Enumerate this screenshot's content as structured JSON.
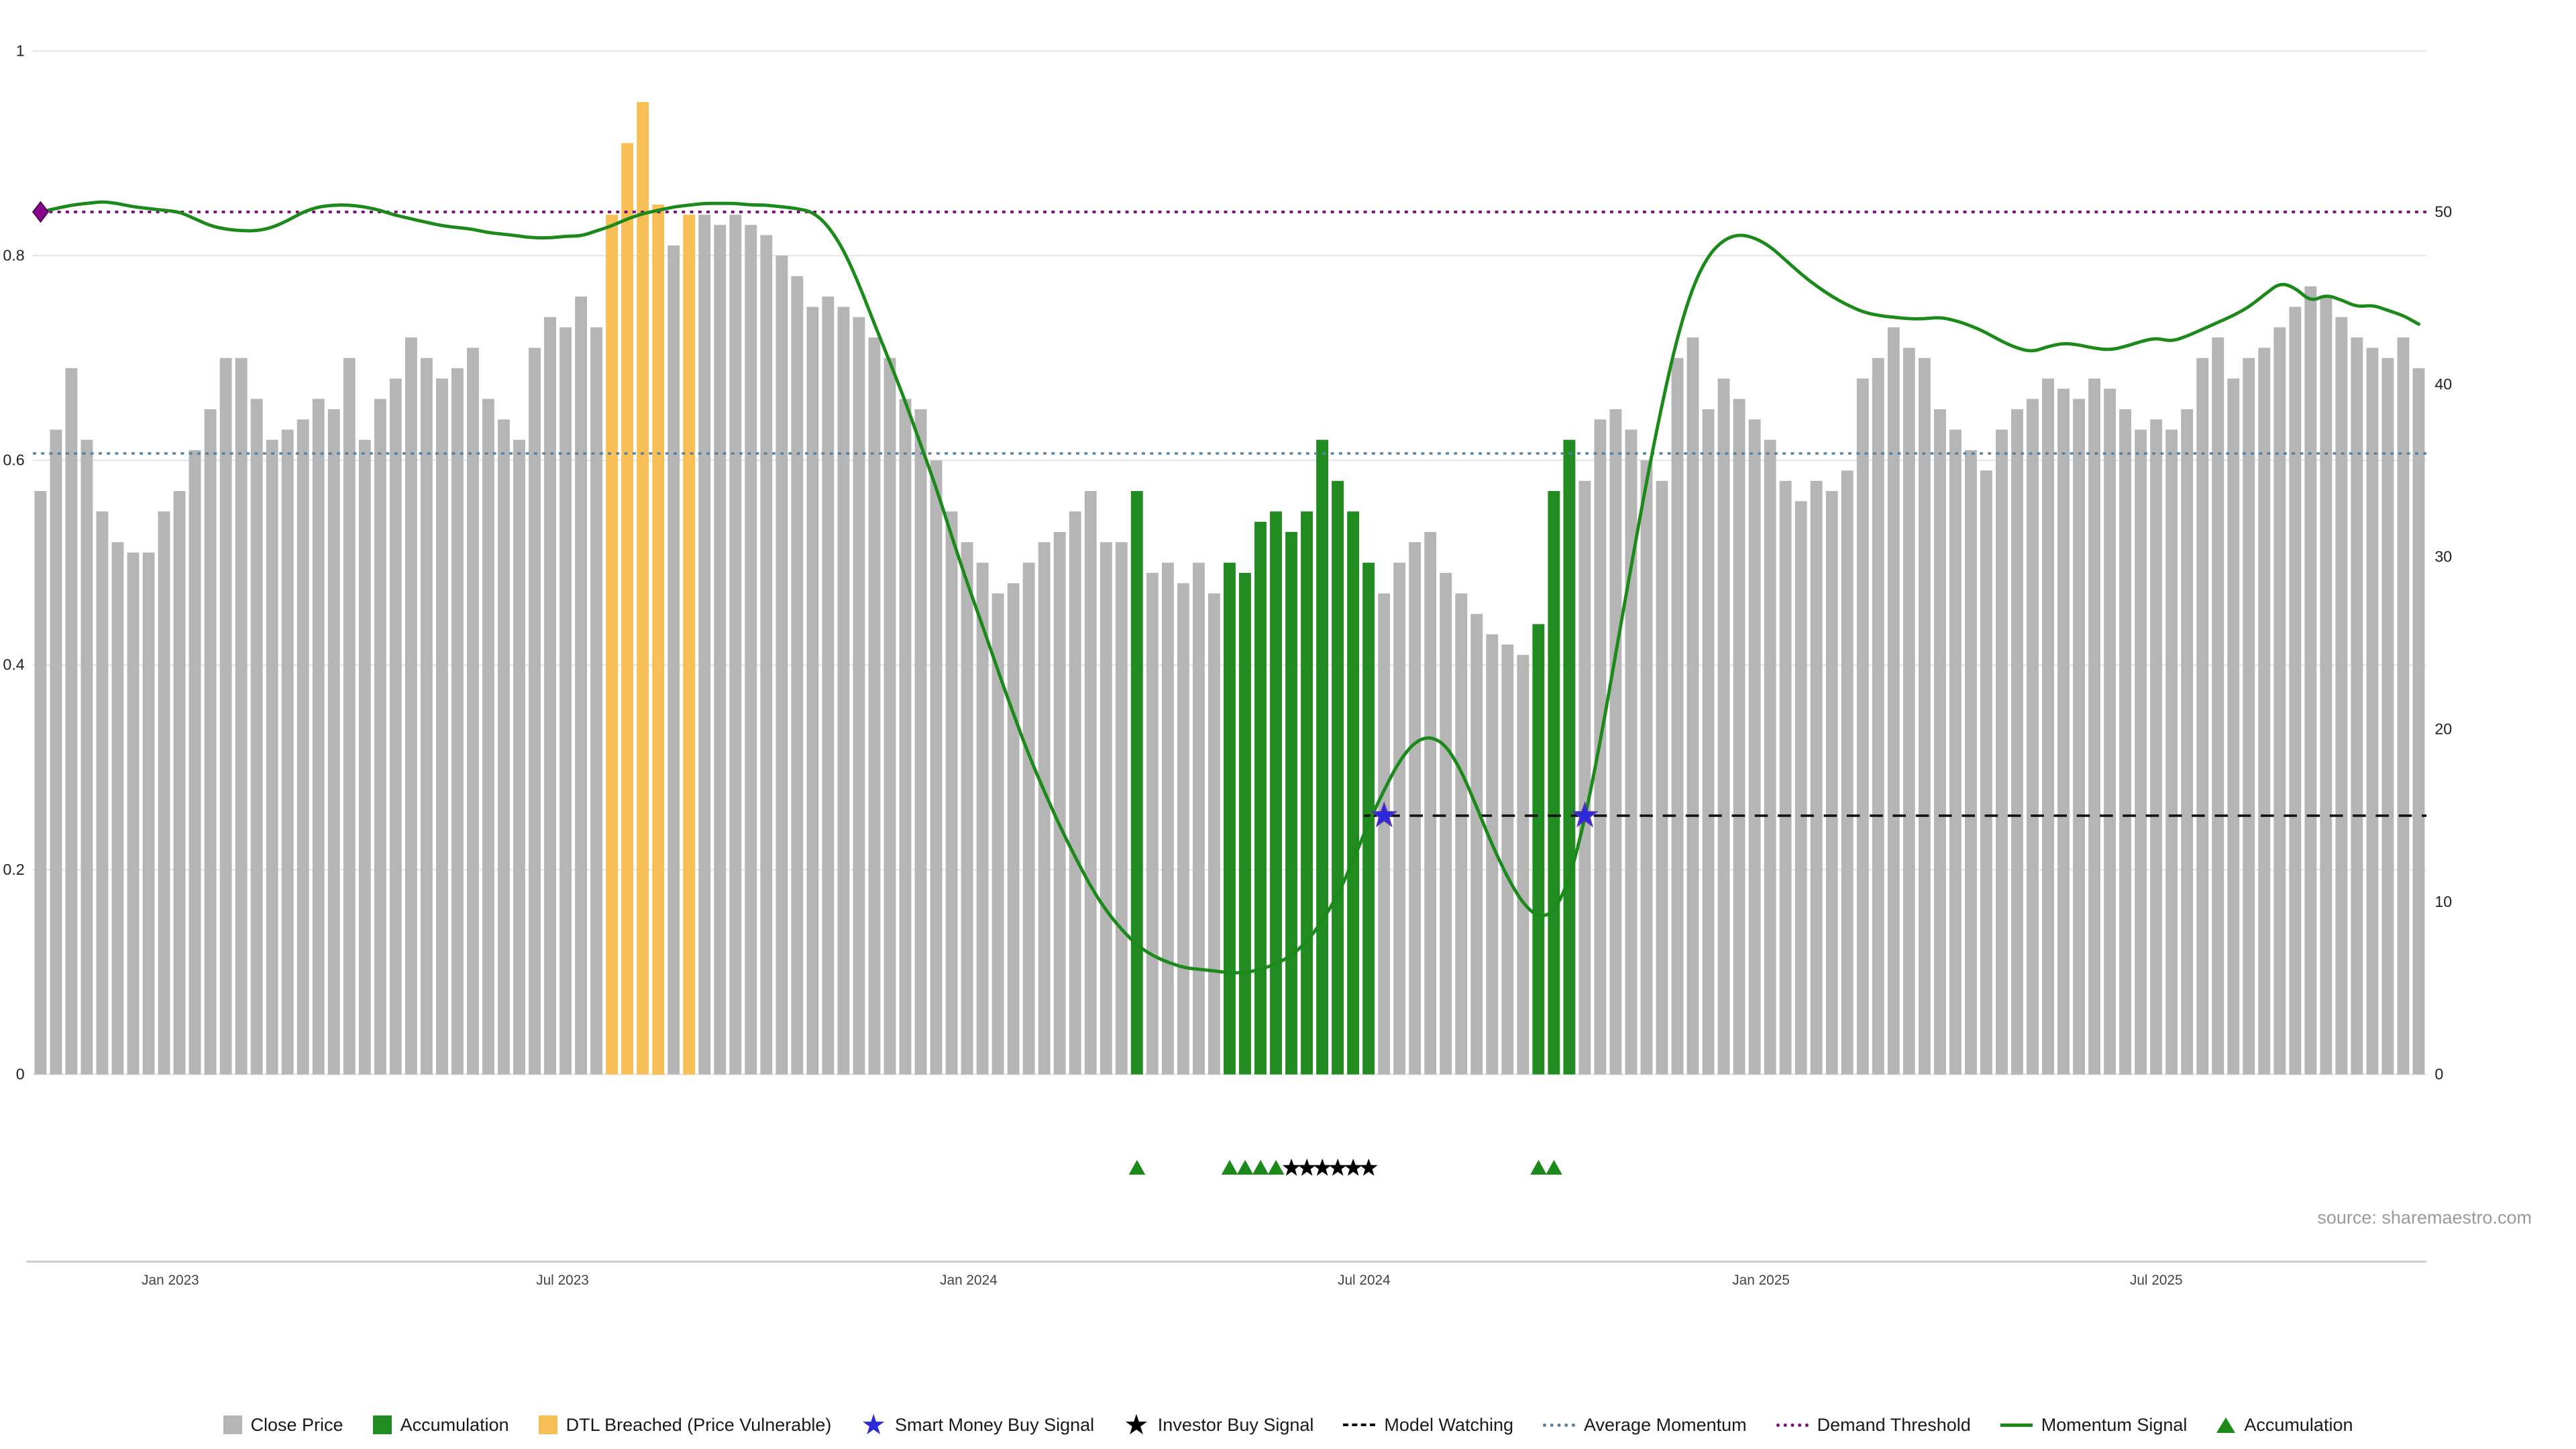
{
  "source": "source: sharemaestro.com",
  "colors": {
    "close_price": "#b5b5b5",
    "accumulation": "#228b22",
    "dtl_breached": "#f7bf56",
    "momentum": "#1b8a1b",
    "demand_threshold": "#7b0c7b",
    "average_momentum": "#4f81a8",
    "model_watching": "#111111",
    "smart_money_star": "#2a2ad8",
    "investor_star": "#000000",
    "start_diamond": "#8b008b",
    "grid": "#e8e8e8",
    "axis_line": "#c9c9c9",
    "axis_text": "#222222",
    "date_text": "#444444"
  },
  "chart_data": {
    "type": "bar",
    "title": "",
    "xlabel": "",
    "ylabel": "",
    "left_axis": {
      "range": [
        0,
        1
      ],
      "values": [
        0,
        0.2,
        0.4,
        0.6,
        0.8,
        1
      ],
      "labels": [
        "0",
        "0.2",
        "0.4",
        "0.6",
        "0.8",
        "1"
      ]
    },
    "right_axis": {
      "range": [
        0,
        50
      ],
      "values": [
        0,
        10,
        20,
        30,
        40,
        50
      ],
      "labels": [
        "0",
        "10",
        "20",
        "30",
        "40",
        "50"
      ]
    },
    "x_ticks": [
      {
        "label": "Jan 2023",
        "i": 8.4
      },
      {
        "label": "Jul 2023",
        "i": 33.8
      },
      {
        "label": "Jan 2024",
        "i": 60.1
      },
      {
        "label": "Jul 2024",
        "i": 85.7
      },
      {
        "label": "Jan 2025",
        "i": 111.4
      },
      {
        "label": "Jul 2025",
        "i": 137.0
      }
    ],
    "bars": {
      "name": "Close Price (normalized)",
      "values": [
        0.57,
        0.63,
        0.69,
        0.62,
        0.55,
        0.52,
        0.51,
        0.51,
        0.55,
        0.57,
        0.61,
        0.65,
        0.7,
        0.7,
        0.66,
        0.62,
        0.63,
        0.64,
        0.66,
        0.65,
        0.7,
        0.62,
        0.66,
        0.68,
        0.72,
        0.7,
        0.68,
        0.69,
        0.71,
        0.66,
        0.64,
        0.62,
        0.71,
        0.74,
        0.73,
        0.76,
        0.73,
        0.84,
        0.91,
        0.95,
        0.85,
        0.81,
        0.84,
        0.84,
        0.83,
        0.84,
        0.83,
        0.82,
        0.8,
        0.78,
        0.75,
        0.76,
        0.75,
        0.74,
        0.72,
        0.7,
        0.66,
        0.65,
        0.6,
        0.55,
        0.52,
        0.5,
        0.47,
        0.48,
        0.5,
        0.52,
        0.53,
        0.55,
        0.57,
        0.52,
        0.52,
        0.57,
        0.49,
        0.5,
        0.48,
        0.5,
        0.47,
        0.5,
        0.49,
        0.54,
        0.55,
        0.53,
        0.55,
        0.62,
        0.58,
        0.55,
        0.5,
        0.47,
        0.5,
        0.52,
        0.53,
        0.49,
        0.47,
        0.45,
        0.43,
        0.42,
        0.41,
        0.44,
        0.57,
        0.62,
        0.58,
        0.64,
        0.65,
        0.63,
        0.6,
        0.58,
        0.7,
        0.72,
        0.65,
        0.68,
        0.66,
        0.64,
        0.62,
        0.58,
        0.56,
        0.58,
        0.57,
        0.59,
        0.68,
        0.7,
        0.73,
        0.71,
        0.7,
        0.65,
        0.63,
        0.61,
        0.59,
        0.63,
        0.65,
        0.66,
        0.68,
        0.67,
        0.66,
        0.68,
        0.67,
        0.65,
        0.63,
        0.64,
        0.63,
        0.65,
        0.7,
        0.72,
        0.68,
        0.7,
        0.71,
        0.73,
        0.75,
        0.77,
        0.76,
        0.74,
        0.72,
        0.71,
        0.7,
        0.72,
        0.69
      ],
      "green_indices": [
        71,
        77,
        78,
        79,
        80,
        81,
        82,
        83,
        84,
        85,
        86,
        97,
        98,
        99
      ],
      "orange_indices": [
        37,
        38,
        39,
        40,
        42
      ]
    },
    "momentum": {
      "name": "Momentum Signal",
      "axis": "right",
      "values": [
        50.0,
        50.2,
        50.4,
        50.5,
        50.6,
        50.5,
        50.3,
        50.2,
        50.1,
        50.0,
        49.6,
        49.2,
        49.0,
        48.9,
        48.9,
        49.1,
        49.5,
        50.0,
        50.3,
        50.4,
        50.4,
        50.3,
        50.1,
        49.8,
        49.6,
        49.4,
        49.2,
        49.1,
        49.0,
        48.8,
        48.7,
        48.6,
        48.5,
        48.5,
        48.6,
        48.6,
        48.9,
        49.2,
        49.6,
        49.9,
        50.1,
        50.3,
        50.4,
        50.5,
        50.5,
        50.5,
        50.4,
        50.4,
        50.3,
        50.2,
        50.0,
        49.2,
        47.8,
        45.8,
        43.5,
        41.3,
        39.0,
        36.5,
        34.0,
        31.2,
        28.5,
        26.0,
        23.4,
        20.9,
        18.5,
        16.4,
        14.4,
        12.6,
        10.9,
        9.5,
        8.4,
        7.5,
        6.9,
        6.5,
        6.2,
        6.1,
        6.0,
        5.9,
        5.9,
        6.1,
        6.4,
        6.9,
        7.7,
        8.9,
        10.4,
        12.4,
        14.6,
        16.5,
        18.2,
        19.3,
        19.6,
        19.1,
        17.6,
        15.5,
        13.3,
        11.4,
        9.9,
        9.1,
        9.4,
        11.3,
        14.8,
        19.3,
        24.4,
        29.5,
        34.4,
        38.9,
        42.8,
        45.7,
        47.5,
        48.4,
        48.7,
        48.5,
        48.0,
        47.2,
        46.4,
        45.7,
        45.1,
        44.6,
        44.2,
        44.0,
        43.9,
        43.8,
        43.8,
        43.9,
        43.7,
        43.4,
        43.0,
        42.5,
        42.1,
        41.9,
        42.2,
        42.4,
        42.3,
        42.1,
        42.0,
        42.2,
        42.5,
        42.7,
        42.5,
        42.8,
        43.2,
        43.6,
        44.0,
        44.5,
        45.2,
        45.9,
        45.6,
        44.8,
        45.2,
        44.9,
        44.5,
        44.6,
        44.3,
        44.0,
        43.5
      ]
    },
    "lines": {
      "demand_threshold": {
        "label": "Demand Threshold",
        "value": 50,
        "axis": "right",
        "style": "dotted"
      },
      "average_momentum": {
        "label": "Average Momentum",
        "value": 36,
        "axis": "right",
        "style": "dotted"
      },
      "model_watching": {
        "label": "Model Watching",
        "value": 15,
        "axis": "right",
        "style": "dashed",
        "start_index": 86
      }
    },
    "markers": {
      "smart_money_buy": {
        "label": "Smart Money Buy Signal",
        "indices": [
          87,
          100
        ],
        "value": 15
      },
      "start_diamond": {
        "index": 0,
        "value": 50
      },
      "accumulation_marks": [
        71,
        77,
        78,
        79,
        80,
        97,
        98
      ],
      "investor_marks": [
        81,
        82,
        83,
        84,
        85,
        86
      ]
    }
  },
  "legend": [
    {
      "label": "Close Price",
      "swatch": "square",
      "color": "#b5b5b5"
    },
    {
      "label": "Accumulation",
      "swatch": "square",
      "color": "#228b22"
    },
    {
      "label": "DTL Breached (Price Vulnerable)",
      "swatch": "square",
      "color": "#f7bf56"
    },
    {
      "label": "Smart Money Buy Signal",
      "swatch": "star",
      "color": "#2a2ad8"
    },
    {
      "label": "Investor Buy Signal",
      "swatch": "star",
      "color": "#000000"
    },
    {
      "label": "Model Watching",
      "swatch": "dash",
      "color": "#111111"
    },
    {
      "label": "Average Momentum",
      "swatch": "dot",
      "color": "#4f81a8"
    },
    {
      "label": "Demand Threshold",
      "swatch": "dot",
      "color": "#7b0c7b"
    },
    {
      "label": "Momentum Signal",
      "swatch": "line",
      "color": "#1b8a1b"
    },
    {
      "label": "Accumulation",
      "swatch": "triangle",
      "color": "#1b8a1b"
    }
  ]
}
